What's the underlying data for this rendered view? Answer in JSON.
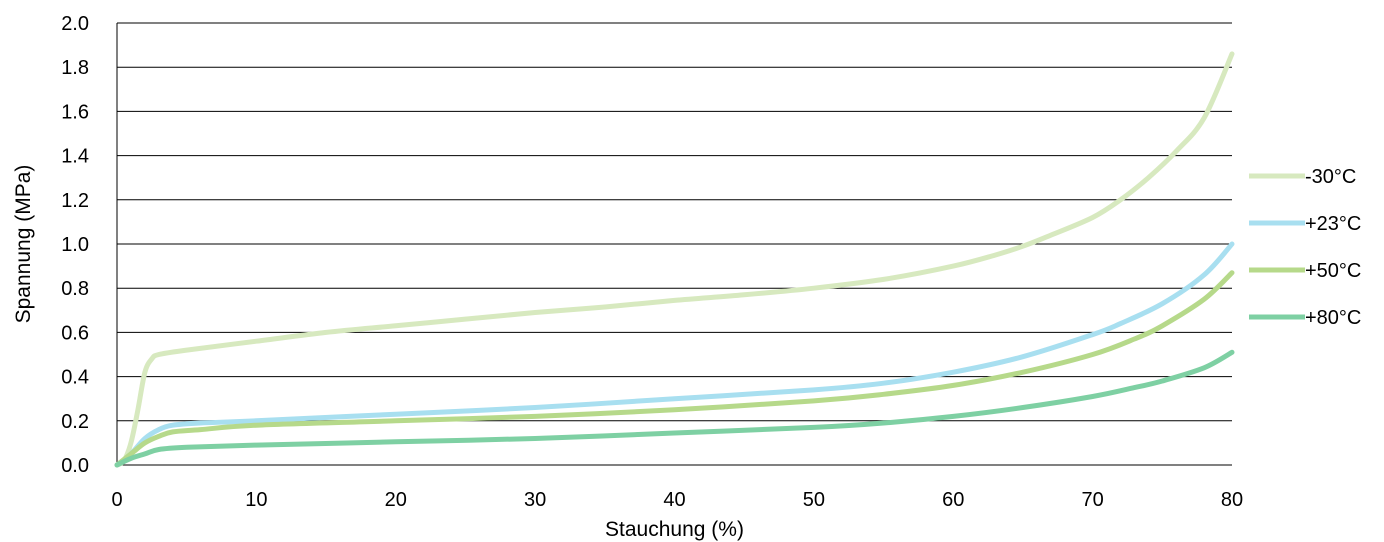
{
  "chart_data": {
    "type": "line",
    "title": "",
    "xlabel": "Stauchung (%)",
    "ylabel": "Spannung (MPa)",
    "xlim": [
      0,
      80
    ],
    "ylim": [
      0,
      2.0
    ],
    "xticks": [
      0,
      10,
      20,
      30,
      40,
      50,
      60,
      70,
      80
    ],
    "yticks": [
      "0.0",
      "0.2",
      "0.4",
      "0.6",
      "0.8",
      "1.0",
      "1.2",
      "1.4",
      "1.6",
      "1.8",
      "2.0"
    ],
    "grid": "horizontal",
    "legend_position": "right",
    "series": [
      {
        "name": "-30°C",
        "color": "#d7e9bf",
        "points": [
          [
            0,
            0
          ],
          [
            0.5,
            0.02
          ],
          [
            1,
            0.1
          ],
          [
            1.5,
            0.25
          ],
          [
            2,
            0.42
          ],
          [
            2.5,
            0.48
          ],
          [
            3,
            0.5
          ],
          [
            5,
            0.52
          ],
          [
            10,
            0.56
          ],
          [
            15,
            0.6
          ],
          [
            20,
            0.63
          ],
          [
            25,
            0.66
          ],
          [
            30,
            0.69
          ],
          [
            35,
            0.715
          ],
          [
            40,
            0.745
          ],
          [
            45,
            0.77
          ],
          [
            50,
            0.8
          ],
          [
            55,
            0.84
          ],
          [
            60,
            0.9
          ],
          [
            63,
            0.95
          ],
          [
            65,
            0.99
          ],
          [
            67,
            1.04
          ],
          [
            70,
            1.12
          ],
          [
            72,
            1.2
          ],
          [
            74,
            1.3
          ],
          [
            76,
            1.42
          ],
          [
            78,
            1.57
          ],
          [
            80,
            1.86
          ]
        ]
      },
      {
        "name": "+23°C",
        "color": "#a8dff0",
        "points": [
          [
            0,
            0
          ],
          [
            1,
            0.05
          ],
          [
            2,
            0.12
          ],
          [
            3,
            0.16
          ],
          [
            4,
            0.18
          ],
          [
            6,
            0.19
          ],
          [
            10,
            0.2
          ],
          [
            20,
            0.23
          ],
          [
            30,
            0.26
          ],
          [
            40,
            0.3
          ],
          [
            50,
            0.34
          ],
          [
            55,
            0.37
          ],
          [
            60,
            0.42
          ],
          [
            65,
            0.49
          ],
          [
            70,
            0.59
          ],
          [
            72,
            0.64
          ],
          [
            75,
            0.73
          ],
          [
            78,
            0.86
          ],
          [
            80,
            1.0
          ]
        ]
      },
      {
        "name": "+50°C",
        "color": "#b6d98a",
        "points": [
          [
            0,
            0
          ],
          [
            1,
            0.05
          ],
          [
            2,
            0.1
          ],
          [
            3,
            0.13
          ],
          [
            4,
            0.15
          ],
          [
            6,
            0.16
          ],
          [
            10,
            0.18
          ],
          [
            20,
            0.2
          ],
          [
            30,
            0.22
          ],
          [
            40,
            0.25
          ],
          [
            50,
            0.29
          ],
          [
            55,
            0.32
          ],
          [
            60,
            0.36
          ],
          [
            65,
            0.42
          ],
          [
            70,
            0.5
          ],
          [
            73,
            0.57
          ],
          [
            75,
            0.63
          ],
          [
            78,
            0.75
          ],
          [
            80,
            0.87
          ]
        ]
      },
      {
        "name": "+80°C",
        "color": "#7ed0a3",
        "points": [
          [
            0,
            0
          ],
          [
            1,
            0.03
          ],
          [
            2,
            0.05
          ],
          [
            3,
            0.07
          ],
          [
            5,
            0.08
          ],
          [
            10,
            0.09
          ],
          [
            20,
            0.105
          ],
          [
            30,
            0.12
          ],
          [
            40,
            0.145
          ],
          [
            50,
            0.17
          ],
          [
            55,
            0.19
          ],
          [
            60,
            0.22
          ],
          [
            65,
            0.26
          ],
          [
            70,
            0.31
          ],
          [
            73,
            0.35
          ],
          [
            75,
            0.38
          ],
          [
            78,
            0.44
          ],
          [
            80,
            0.51
          ]
        ]
      }
    ]
  }
}
